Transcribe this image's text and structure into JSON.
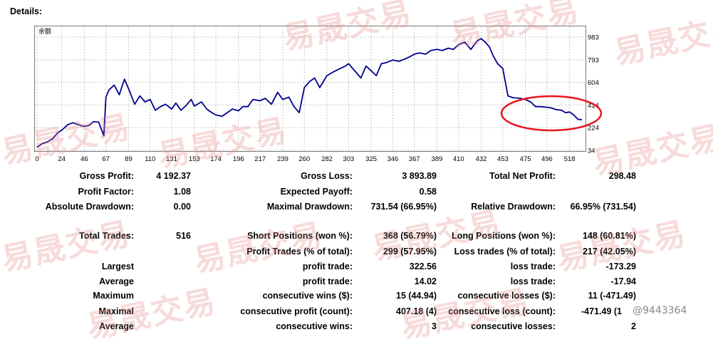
{
  "title": "Details:",
  "chart_data": {
    "type": "line",
    "legend": "余额",
    "x_ticks": [
      "0",
      "24",
      "46",
      "67",
      "89",
      "110",
      "131",
      "153",
      "174",
      "196",
      "217",
      "239",
      "260",
      "282",
      "303",
      "325",
      "346",
      "367",
      "389",
      "410",
      "432",
      "453",
      "475",
      "496",
      "518"
    ],
    "y_ticks": [
      "983",
      "793",
      "604",
      "414",
      "224",
      "34"
    ],
    "ylim": [
      34,
      983
    ],
    "xlim": [
      0,
      530
    ],
    "line_color": "#00008b",
    "highlight_color": "#e8141e",
    "series": [
      {
        "x": [
          0,
          5,
          10,
          15,
          20,
          25,
          30,
          35,
          40,
          45,
          50,
          55,
          60,
          65,
          67,
          70,
          75,
          80,
          85,
          89,
          95,
          100,
          105,
          110,
          115,
          120,
          125,
          131,
          135,
          140,
          145,
          150,
          153,
          160,
          165,
          170,
          174,
          180,
          185,
          190,
          196,
          200,
          205,
          210,
          217,
          222,
          228,
          234,
          239,
          245,
          250,
          255,
          260,
          265,
          270,
          275,
          282,
          288,
          295,
          300,
          303,
          310,
          315,
          320,
          325,
          330,
          335,
          340,
          346,
          352,
          358,
          363,
          367,
          372,
          378,
          383,
          389,
          394,
          400,
          405,
          410,
          416,
          422,
          428,
          432,
          436,
          440,
          444,
          448,
          453,
          458,
          463,
          470,
          475,
          480,
          485,
          490,
          496,
          500,
          505,
          510,
          514,
          518,
          522,
          526,
          530
        ],
        "values": [
          60,
          90,
          105,
          130,
          180,
          210,
          250,
          265,
          250,
          235,
          240,
          275,
          270,
          155,
          480,
          540,
          580,
          500,
          630,
          550,
          420,
          490,
          440,
          460,
          370,
          400,
          420,
          380,
          430,
          370,
          410,
          460,
          405,
          440,
          380,
          350,
          330,
          320,
          350,
          380,
          365,
          400,
          400,
          460,
          450,
          470,
          420,
          520,
          460,
          480,
          400,
          350,
          560,
          610,
          640,
          560,
          660,
          690,
          720,
          740,
          760,
          690,
          640,
          740,
          700,
          660,
          760,
          770,
          790,
          780,
          800,
          820,
          840,
          850,
          840,
          870,
          880,
          870,
          890,
          880,
          920,
          940,
          880,
          950,
          970,
          940,
          900,
          820,
          760,
          720,
          490,
          475,
          470,
          460,
          440,
          400,
          400,
          395,
          390,
          375,
          370,
          350,
          355,
          330,
          295,
          290
        ]
      }
    ],
    "highlight": {
      "label": "red ellipse around tail of balance curve"
    }
  },
  "stats": {
    "gross_profit_label": "Gross Profit:",
    "gross_profit": "4 192.37",
    "gross_loss_label": "Gross Loss:",
    "gross_loss": "3 893.89",
    "total_net_profit_label": "Total Net Profit:",
    "total_net_profit": "298.48",
    "profit_factor_label": "Profit Factor:",
    "profit_factor": "1.08",
    "expected_payoff_label": "Expected Payoff:",
    "expected_payoff": "0.58",
    "abs_drawdown_label": "Absolute Drawdown:",
    "abs_drawdown": "0.00",
    "max_drawdown_label": "Maximal Drawdown:",
    "max_drawdown": "731.54 (66.95%)",
    "rel_drawdown_label": "Relative Drawdown:",
    "rel_drawdown": "66.95% (731.54)",
    "total_trades_label": "Total Trades:",
    "total_trades": "516",
    "short_label": "Short Positions (won %):",
    "short": "368 (56.79%)",
    "long_label": "Long Positions (won %):",
    "long": "148 (60.81%)",
    "profit_trades_label": "Profit Trades (% of total):",
    "profit_trades": "299 (57.95%)",
    "loss_trades_label": "Loss trades (% of total):",
    "loss_trades": "217 (42.05%)",
    "largest_label": "Largest",
    "largest_profit_label": "profit trade:",
    "largest_profit": "322.56",
    "largest_loss_label": "loss trade:",
    "largest_loss": "-173.29",
    "average_label": "Average",
    "average_profit_label": "profit trade:",
    "average_profit": "14.02",
    "average_loss_label": "loss trade:",
    "average_loss": "-17.94",
    "maximum_label": "Maximum",
    "max_cons_wins_label": "consecutive wins ($):",
    "max_cons_wins": "15 (44.94)",
    "max_cons_losses_label": "consecutive losses ($):",
    "max_cons_losses": "11 (-471.49)",
    "maximal_label": "Maximal",
    "maximal_cons_profit_label": "consecutive profit (count):",
    "maximal_cons_profit": "407.18 (4)",
    "maximal_cons_loss_label": "consecutive loss (count):",
    "maximal_cons_loss": "-471.49 (1",
    "average2_label": "Average",
    "avg_cons_wins_label": "consecutive wins:",
    "avg_cons_wins": "3",
    "avg_cons_losses_label": "consecutive losses:",
    "avg_cons_losses": "2"
  },
  "watermark": {
    "text": "易晟交易",
    "credit": "@9443364"
  }
}
